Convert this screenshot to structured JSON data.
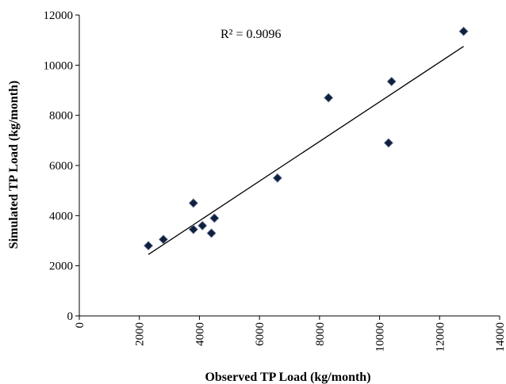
{
  "chart_data": {
    "type": "scatter",
    "title": "",
    "xlabel": "Observed TP Load (kg/month)",
    "ylabel": "Simulated TP Load (kg/month)",
    "xlim": [
      0,
      14000
    ],
    "ylim": [
      0,
      12000
    ],
    "x_ticks": [
      0,
      2000,
      4000,
      6000,
      8000,
      10000,
      12000,
      14000
    ],
    "y_ticks": [
      0,
      2000,
      4000,
      6000,
      8000,
      10000,
      12000
    ],
    "grid": false,
    "legend": "none",
    "annotation": "R² = 0.9096",
    "series": [
      {
        "marker": "diamond",
        "color": "#0f1f3d",
        "x": [
          2300,
          2800,
          3800,
          3800,
          4100,
          4400,
          4500,
          6600,
          8300,
          10300,
          10400,
          12800
        ],
        "y": [
          2800,
          3050,
          4500,
          3450,
          3600,
          3300,
          3900,
          5500,
          8700,
          6900,
          9350,
          11350
        ]
      }
    ],
    "trendline": {
      "type": "linear",
      "x": [
        2300,
        12800
      ],
      "y": [
        2450,
        10750
      ]
    }
  }
}
